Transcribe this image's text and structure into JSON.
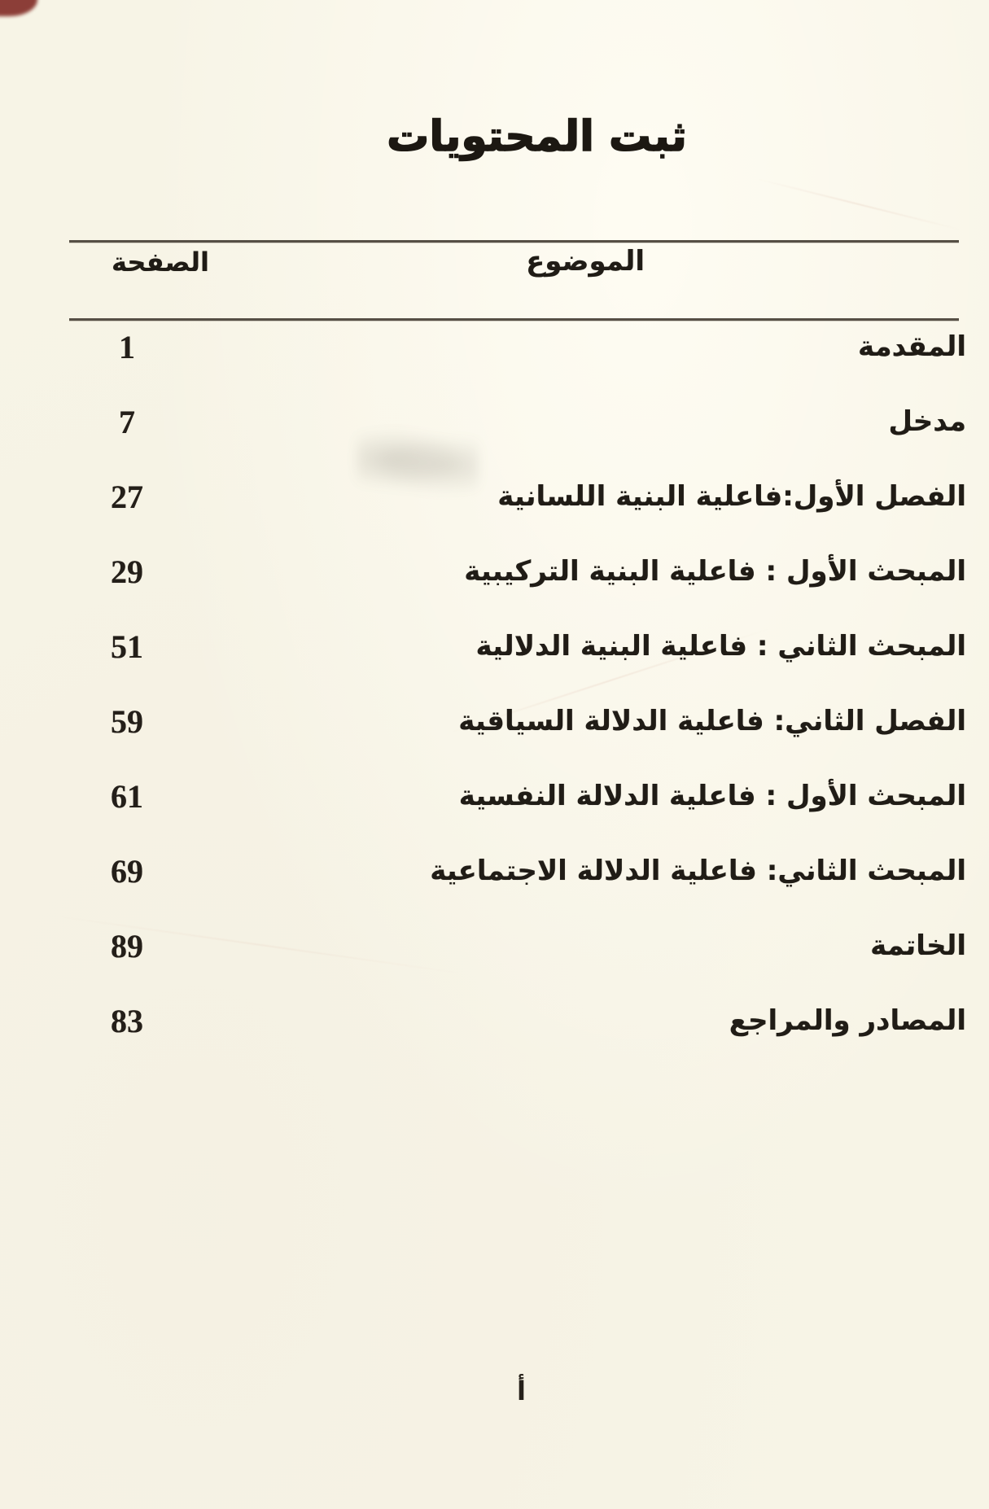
{
  "page": {
    "title": "ثبت المحتويات",
    "header": {
      "page_col": "الصفحة",
      "subject_col": "الموضوع"
    },
    "entries": [
      {
        "subject": "المقدمة",
        "page": "1"
      },
      {
        "subject": "مدخل",
        "page": "7"
      },
      {
        "subject": "الفصل الأول:فاعلية البنية اللسانية",
        "page": "27"
      },
      {
        "subject": "المبحث الأول : فاعلية البنية التركيبية",
        "page": "29"
      },
      {
        "subject": "المبحث الثاني : فاعلية البنية الدلالية",
        "page": "51"
      },
      {
        "subject": "الفصل الثاني: فاعلية الدلالة السياقية",
        "page": "59"
      },
      {
        "subject": "المبحث الأول : فاعلية الدلالة النفسية",
        "page": "61"
      },
      {
        "subject": "المبحث الثاني: فاعلية الدلالة الاجتماعية",
        "page": "69"
      },
      {
        "subject": "الخاتمة",
        "page": "89"
      },
      {
        "subject": "المصادر والمراجع",
        "page": "83"
      }
    ],
    "footer_marker": "أ"
  },
  "colors": {
    "paper": "#f7f4e6",
    "ink": "#201c16",
    "rule": "#564f45"
  }
}
